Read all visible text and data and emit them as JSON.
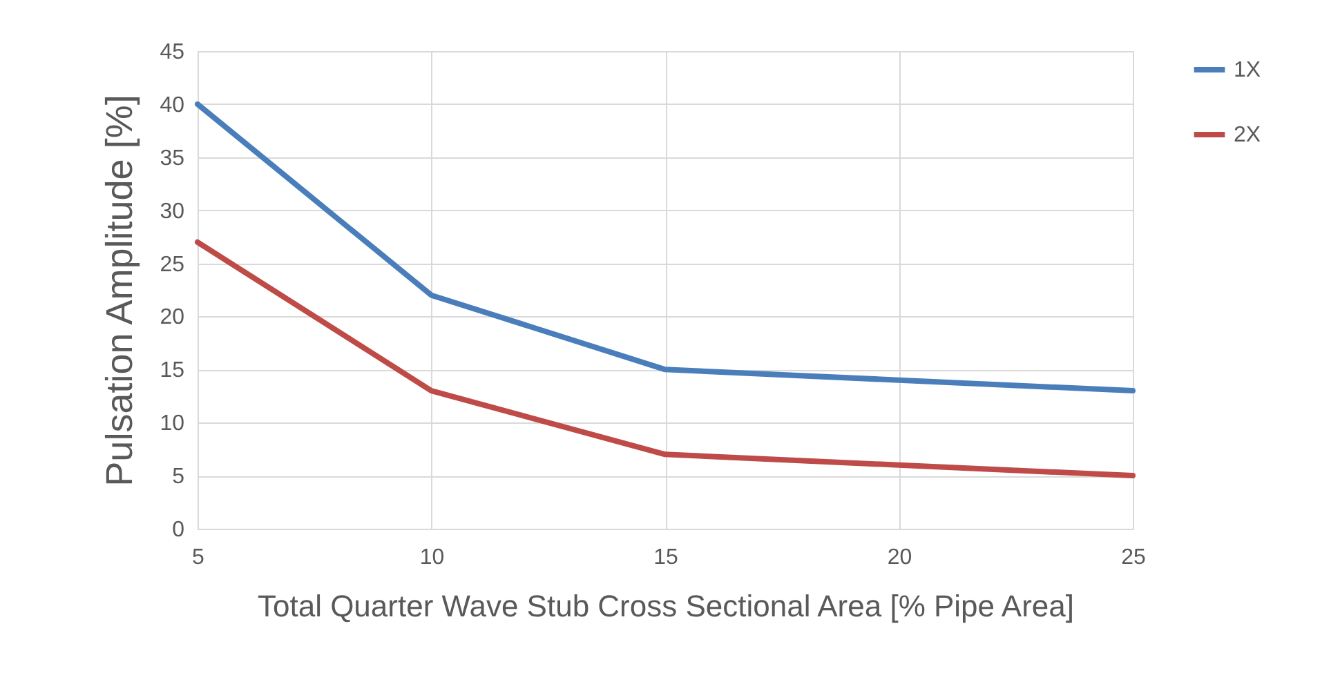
{
  "chart_data": {
    "type": "line",
    "xlabel": "Total Quarter Wave Stub Cross Sectional Area [% Pipe Area]",
    "ylabel": "Pulsation Amplitude  [%]",
    "x": [
      5,
      10,
      15,
      20,
      25
    ],
    "series": [
      {
        "name": "1X",
        "color": "#4a7ebb",
        "values": [
          40,
          22,
          15,
          14,
          13
        ]
      },
      {
        "name": "2X",
        "color": "#be4b48",
        "values": [
          27,
          13,
          7,
          6,
          5
        ]
      }
    ],
    "xlim": [
      5,
      25
    ],
    "xticks": [
      5,
      10,
      15,
      20,
      25
    ],
    "ylim": [
      0,
      45
    ],
    "yticks": [
      0,
      5,
      10,
      15,
      20,
      25,
      30,
      35,
      40,
      45
    ],
    "grid": true,
    "legend": "right",
    "marker": "none",
    "line_style": "solid"
  }
}
